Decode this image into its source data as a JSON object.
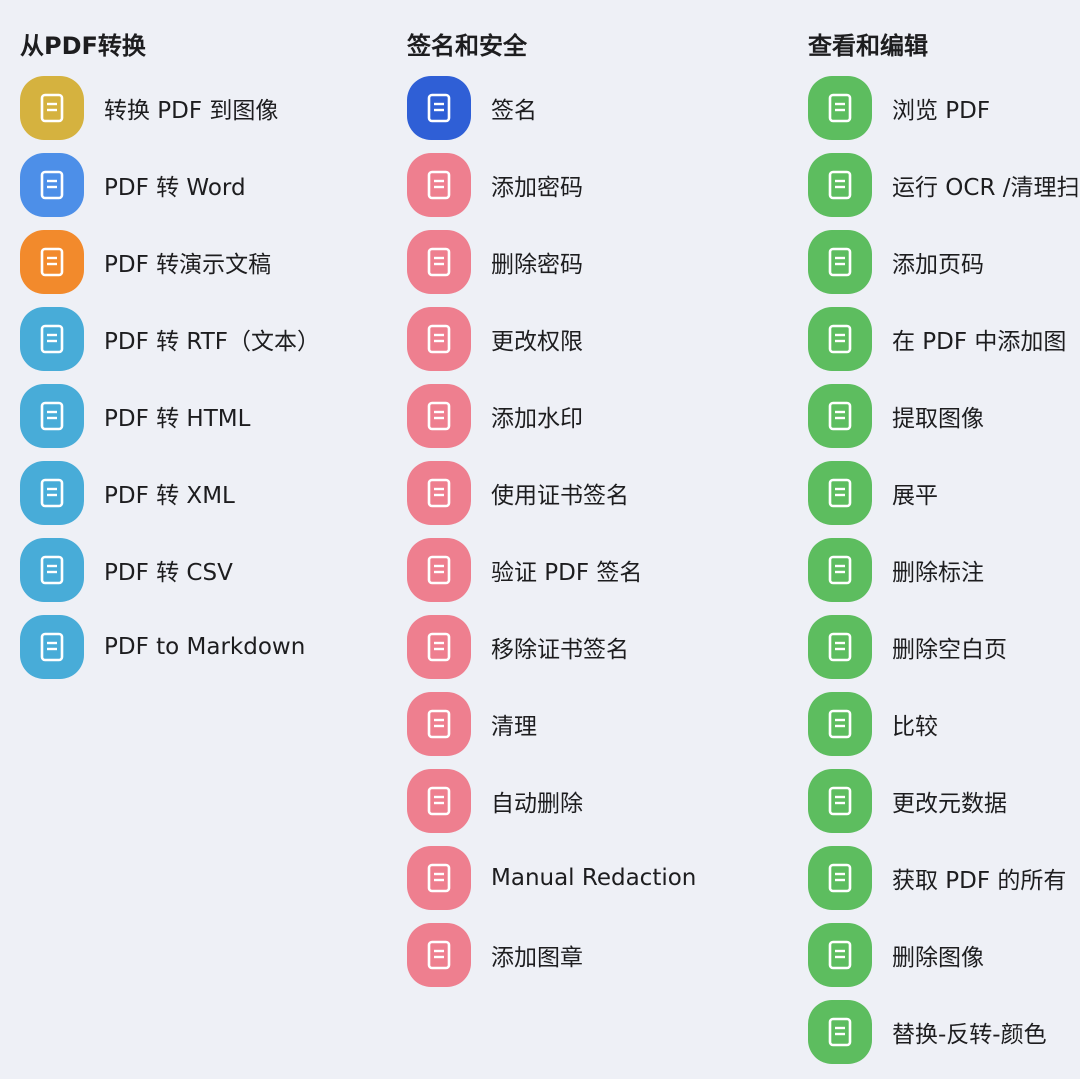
{
  "columns": [
    {
      "title": "从PDF转换",
      "items": [
        "转换 PDF 到图像",
        "PDF 转 Word",
        "PDF 转演示文稿",
        "PDF 转 RTF（文本）",
        "PDF 转 HTML",
        "PDF 转 XML",
        "PDF 转 CSV",
        "PDF to Markdown"
      ]
    },
    {
      "title": "签名和安全",
      "items": [
        "签名",
        "添加密码",
        "删除密码",
        "更改权限",
        "添加水印",
        "使用证书签名",
        "验证 PDF 签名",
        "移除证书签名",
        "清理",
        "自动删除",
        "Manual Redaction",
        "添加图章"
      ]
    },
    {
      "title": "查看和编辑",
      "items": [
        "浏览 PDF",
        "运行 OCR /清理扫",
        "添加页码",
        "在 PDF 中添加图",
        "提取图像",
        "展平",
        "删除标注",
        "删除空白页",
        "比较",
        "更改元数据",
        "获取 PDF 的所有",
        "删除图像",
        "替换-反转-颜色"
      ]
    }
  ]
}
